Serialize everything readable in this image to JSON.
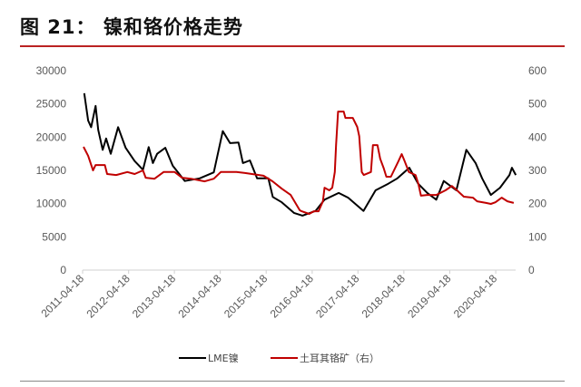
{
  "title": "图 21：  镍和铬价格走势",
  "chart_data": {
    "type": "line",
    "title": "",
    "xlabel": "",
    "ylabel": "",
    "y2label": "",
    "x_tick_labels": [
      "2011-04-18",
      "2012-04-18",
      "2013-04-18",
      "2014-04-18",
      "2015-04-18",
      "2016-04-18",
      "2017-04-18",
      "2018-04-18",
      "2019-04-18",
      "2020-04-18"
    ],
    "y_ticks": [
      0,
      5000,
      10000,
      15000,
      20000,
      25000,
      30000
    ],
    "y_tick_labels": [
      "0",
      "5000",
      "10000",
      "15000",
      "20000",
      "25000",
      "30000"
    ],
    "y2_ticks": [
      0,
      100,
      200,
      300,
      400,
      500,
      600
    ],
    "y2_tick_labels": [
      "0",
      "100",
      "200",
      "300",
      "400",
      "500",
      "600"
    ],
    "ylim": [
      0,
      30000
    ],
    "y2lim": [
      0,
      600
    ],
    "grid": false,
    "legend_position": "bottom",
    "series": [
      {
        "name": "LME镍",
        "axis": "left",
        "color": "#000000",
        "points": [
          [
            "2011-05-01",
            26600
          ],
          [
            "2011-06-01",
            22500
          ],
          [
            "2011-06-25",
            21500
          ],
          [
            "2011-07-30",
            24700
          ],
          [
            "2011-08-20",
            21100
          ],
          [
            "2011-09-25",
            18100
          ],
          [
            "2011-10-22",
            19800
          ],
          [
            "2011-11-28",
            17500
          ],
          [
            "2012-01-25",
            21500
          ],
          [
            "2012-03-25",
            18400
          ],
          [
            "2012-06-05",
            16400
          ],
          [
            "2012-08-10",
            15100
          ],
          [
            "2012-09-25",
            18500
          ],
          [
            "2012-10-28",
            16100
          ],
          [
            "2012-12-01",
            17500
          ],
          [
            "2013-02-05",
            18400
          ],
          [
            "2013-04-05",
            15700
          ],
          [
            "2013-07-10",
            13400
          ],
          [
            "2013-11-05",
            13800
          ],
          [
            "2014-02-25",
            14700
          ],
          [
            "2014-05-08",
            20900
          ],
          [
            "2014-07-05",
            19100
          ],
          [
            "2014-09-10",
            19200
          ],
          [
            "2014-10-15",
            16100
          ],
          [
            "2014-12-10",
            16500
          ],
          [
            "2015-02-05",
            13800
          ],
          [
            "2015-05-05",
            13800
          ],
          [
            "2015-06-10",
            11000
          ],
          [
            "2015-08-20",
            10200
          ],
          [
            "2015-11-25",
            8600
          ],
          [
            "2016-02-01",
            8200
          ],
          [
            "2016-05-15",
            8900
          ],
          [
            "2016-07-25",
            10600
          ],
          [
            "2016-11-15",
            11600
          ],
          [
            "2017-01-30",
            10900
          ],
          [
            "2017-06-01",
            8900
          ],
          [
            "2017-09-05",
            12000
          ],
          [
            "2017-12-15",
            13000
          ],
          [
            "2018-02-25",
            13800
          ],
          [
            "2018-06-01",
            15400
          ],
          [
            "2018-08-10",
            13000
          ],
          [
            "2018-10-22",
            11600
          ],
          [
            "2019-01-01",
            10600
          ],
          [
            "2019-03-01",
            13400
          ],
          [
            "2019-06-10",
            12000
          ],
          [
            "2019-08-28",
            18100
          ],
          [
            "2019-11-10",
            16100
          ],
          [
            "2020-01-01",
            13800
          ],
          [
            "2020-03-10",
            11300
          ],
          [
            "2020-05-22",
            12400
          ],
          [
            "2020-08-05",
            14300
          ],
          [
            "2020-08-25",
            15400
          ],
          [
            "2020-09-25",
            14300
          ]
        ]
      },
      {
        "name": "土耳其铬矿（右）",
        "axis": "right",
        "color": "#c00000",
        "points": [
          [
            "2011-04-25",
            371
          ],
          [
            "2011-06-01",
            344
          ],
          [
            "2011-07-10",
            300
          ],
          [
            "2011-07-30",
            316
          ],
          [
            "2011-10-12",
            316
          ],
          [
            "2011-10-30",
            289
          ],
          [
            "2012-01-10",
            286
          ],
          [
            "2012-04-08",
            295
          ],
          [
            "2012-06-05",
            289
          ],
          [
            "2012-08-10",
            300
          ],
          [
            "2012-09-01",
            278
          ],
          [
            "2012-11-10",
            275
          ],
          [
            "2013-01-22",
            295
          ],
          [
            "2013-04-20",
            295
          ],
          [
            "2013-06-18",
            278
          ],
          [
            "2013-08-28",
            275
          ],
          [
            "2013-12-15",
            267
          ],
          [
            "2014-02-25",
            275
          ],
          [
            "2014-04-22",
            295
          ],
          [
            "2014-08-25",
            295
          ],
          [
            "2014-11-01",
            292
          ],
          [
            "2015-03-28",
            284
          ],
          [
            "2015-06-08",
            267
          ],
          [
            "2015-08-20",
            245
          ],
          [
            "2015-10-30",
            226
          ],
          [
            "2016-01-10",
            180
          ],
          [
            "2016-01-25",
            177
          ],
          [
            "2016-03-25",
            169
          ],
          [
            "2016-05-01",
            177
          ],
          [
            "2016-06-08",
            177
          ],
          [
            "2016-07-12",
            207
          ],
          [
            "2016-07-25",
            248
          ],
          [
            "2016-09-01",
            240
          ],
          [
            "2016-09-25",
            248
          ],
          [
            "2016-10-15",
            295
          ],
          [
            "2016-10-25",
            376
          ],
          [
            "2016-11-10",
            477
          ],
          [
            "2016-12-25",
            477
          ],
          [
            "2017-01-08",
            458
          ],
          [
            "2017-03-08",
            458
          ],
          [
            "2017-04-12",
            431
          ],
          [
            "2017-04-28",
            403
          ],
          [
            "2017-05-18",
            295
          ],
          [
            "2017-06-03",
            286
          ],
          [
            "2017-07-30",
            295
          ],
          [
            "2017-08-15",
            376
          ],
          [
            "2017-09-20",
            376
          ],
          [
            "2017-10-12",
            335
          ],
          [
            "2017-11-08",
            308
          ],
          [
            "2017-11-30",
            281
          ],
          [
            "2018-01-05",
            281
          ],
          [
            "2018-03-05",
            327
          ],
          [
            "2018-04-01",
            349
          ],
          [
            "2018-04-22",
            330
          ],
          [
            "2018-05-28",
            295
          ],
          [
            "2018-07-20",
            286
          ],
          [
            "2018-08-12",
            259
          ],
          [
            "2018-09-01",
            224
          ],
          [
            "2018-10-22",
            226
          ],
          [
            "2019-01-01",
            226
          ],
          [
            "2019-03-15",
            240
          ],
          [
            "2019-05-05",
            253
          ],
          [
            "2019-06-15",
            240
          ],
          [
            "2019-08-08",
            221
          ],
          [
            "2019-10-20",
            218
          ],
          [
            "2019-11-22",
            207
          ],
          [
            "2020-02-01",
            202
          ],
          [
            "2020-03-10",
            199
          ],
          [
            "2020-04-15",
            204
          ],
          [
            "2020-06-05",
            218
          ],
          [
            "2020-07-20",
            207
          ],
          [
            "2020-09-08",
            202
          ]
        ]
      }
    ]
  }
}
